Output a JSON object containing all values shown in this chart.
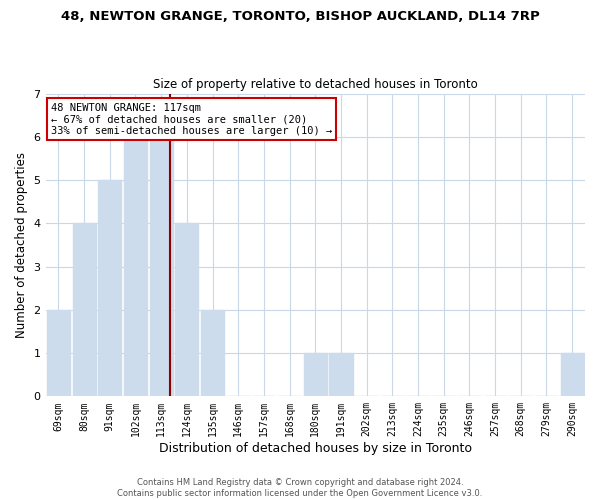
{
  "title_line1": "48, NEWTON GRANGE, TORONTO, BISHOP AUCKLAND, DL14 7RP",
  "title_line2": "Size of property relative to detached houses in Toronto",
  "xlabel": "Distribution of detached houses by size in Toronto",
  "ylabel": "Number of detached properties",
  "categories": [
    "69sqm",
    "80sqm",
    "91sqm",
    "102sqm",
    "113sqm",
    "124sqm",
    "135sqm",
    "146sqm",
    "157sqm",
    "168sqm",
    "180sqm",
    "191sqm",
    "202sqm",
    "213sqm",
    "224sqm",
    "235sqm",
    "246sqm",
    "257sqm",
    "268sqm",
    "279sqm",
    "290sqm"
  ],
  "values": [
    2,
    4,
    5,
    6,
    6,
    4,
    2,
    0,
    0,
    0,
    1,
    1,
    0,
    0,
    0,
    0,
    0,
    0,
    0,
    0,
    1
  ],
  "bar_color": "#ccdcec",
  "bar_edge_color": "#ccdcec",
  "reference_line_color": "#8b0000",
  "ylim": [
    0,
    7
  ],
  "yticks": [
    0,
    1,
    2,
    3,
    4,
    5,
    6,
    7
  ],
  "annotation_text": "48 NEWTON GRANGE: 117sqm\n← 67% of detached houses are smaller (20)\n33% of semi-detached houses are larger (10) →",
  "annotation_box_edge_color": "#cc0000",
  "footnote_line1": "Contains HM Land Registry data © Crown copyright and database right 2024.",
  "footnote_line2": "Contains public sector information licensed under the Open Government Licence v3.0.",
  "background_color": "#ffffff",
  "grid_color": "#c8d8e8"
}
